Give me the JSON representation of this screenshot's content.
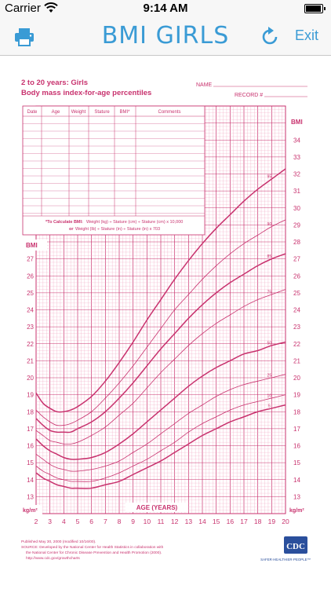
{
  "status_bar": {
    "carrier": "Carrier",
    "time": "9:14 AM"
  },
  "nav": {
    "title": "BMI GIRLS",
    "exit_label": "Exit"
  },
  "colors": {
    "accent": "#3a9bd5",
    "chart": "#c8326e",
    "grid": "#f2a9c4"
  },
  "chart_data": {
    "type": "line",
    "title": "2 to 20 years: Girls",
    "subtitle": "Body mass index-for-age percentiles",
    "name_label": "NAME",
    "record_label": "RECORD #",
    "xlabel": "AGE (YEARS)",
    "ylabel": "BMI",
    "unit_label": "kg/m²",
    "xlim": [
      2,
      20
    ],
    "ylim": [
      12,
      36
    ],
    "x_ticks": [
      2,
      3,
      4,
      5,
      6,
      7,
      8,
      9,
      10,
      11,
      12,
      13,
      14,
      15,
      16,
      17,
      18,
      19,
      20
    ],
    "x": [
      2,
      2.5,
      3,
      3.5,
      4,
      4.5,
      5,
      6,
      7,
      8,
      9,
      10,
      11,
      12,
      13,
      14,
      15,
      16,
      17,
      18,
      19,
      20
    ],
    "series": [
      {
        "name": "95",
        "values": [
          19.1,
          18.5,
          18.2,
          18.0,
          18.0,
          18.1,
          18.3,
          18.9,
          19.8,
          20.9,
          22.1,
          23.4,
          24.6,
          25.8,
          26.9,
          27.9,
          28.8,
          29.6,
          30.4,
          31.1,
          31.7,
          32.3
        ]
      },
      {
        "name": "90",
        "values": [
          18.1,
          17.7,
          17.4,
          17.2,
          17.2,
          17.3,
          17.5,
          18.0,
          18.8,
          19.7,
          20.7,
          21.8,
          22.9,
          24.0,
          24.9,
          25.8,
          26.6,
          27.3,
          27.9,
          28.4,
          28.9,
          29.3
        ]
      },
      {
        "name": "85",
        "values": [
          17.6,
          17.2,
          16.9,
          16.8,
          16.8,
          16.8,
          17.0,
          17.4,
          18.0,
          18.8,
          19.7,
          20.7,
          21.7,
          22.6,
          23.5,
          24.3,
          25.0,
          25.6,
          26.1,
          26.6,
          27.0,
          27.3
        ]
      },
      {
        "name": "75",
        "values": [
          16.9,
          16.6,
          16.3,
          16.2,
          16.1,
          16.1,
          16.2,
          16.6,
          17.1,
          17.8,
          18.5,
          19.4,
          20.3,
          21.1,
          21.9,
          22.6,
          23.2,
          23.7,
          24.2,
          24.6,
          24.9,
          25.2
        ]
      },
      {
        "name": "50",
        "values": [
          16.4,
          16.0,
          15.7,
          15.5,
          15.3,
          15.2,
          15.2,
          15.3,
          15.6,
          16.1,
          16.7,
          17.4,
          18.1,
          18.8,
          19.5,
          20.1,
          20.6,
          21.0,
          21.4,
          21.6,
          21.9,
          22.1
        ]
      },
      {
        "name": "25",
        "values": [
          15.5,
          15.2,
          14.9,
          14.7,
          14.6,
          14.5,
          14.5,
          14.6,
          14.8,
          15.1,
          15.6,
          16.1,
          16.7,
          17.3,
          17.9,
          18.4,
          18.9,
          19.3,
          19.6,
          19.8,
          20.0,
          20.2
        ]
      },
      {
        "name": "10",
        "values": [
          14.8,
          14.5,
          14.3,
          14.1,
          14.0,
          13.9,
          13.9,
          13.9,
          14.1,
          14.4,
          14.8,
          15.2,
          15.7,
          16.2,
          16.8,
          17.3,
          17.7,
          18.1,
          18.4,
          18.6,
          18.8,
          19.0
        ]
      },
      {
        "name": "5",
        "values": [
          14.4,
          14.1,
          13.9,
          13.7,
          13.6,
          13.5,
          13.5,
          13.5,
          13.7,
          13.9,
          14.3,
          14.7,
          15.1,
          15.6,
          16.1,
          16.6,
          17.0,
          17.4,
          17.7,
          18.0,
          18.2,
          18.4
        ]
      }
    ],
    "table": {
      "headers": [
        "Date",
        "Age",
        "Weight",
        "Stature",
        "BMI*",
        "Comments"
      ],
      "formula_title": "*To Calculate BMI:",
      "formula_1": "Weight (kg) ÷ Stature (cm) ÷ Stature (cm) x 10,000",
      "formula_2_prefix": "or",
      "formula_2": "Weight (lb) ÷ Stature (in) ÷ Stature (in) x 703"
    },
    "footer": {
      "line1": "Published May 30, 2000 (modified 10/16/00).",
      "line2": "SOURCE: Developed by the National Center for Health Statistics in collaboration with",
      "line3": "the National Center for Chronic Disease Prevention and Health Promotion (2000).",
      "line4": "http://www.cdc.gov/growthcharts",
      "logo_text": "CDC",
      "tagline": "SAFER·HEALTHIER·PEOPLE™"
    }
  }
}
